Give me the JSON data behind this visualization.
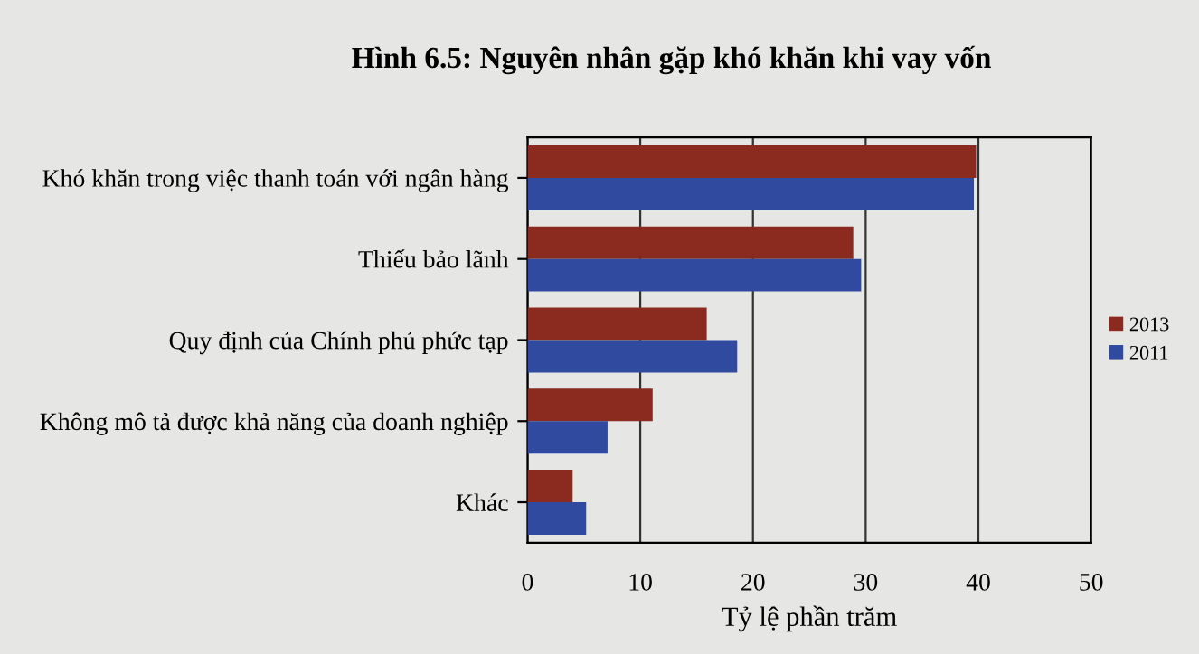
{
  "chart_data": {
    "type": "bar",
    "orientation": "horizontal",
    "title": "Hình 6.5: Nguyên nhân gặp khó khăn khi vay vốn",
    "xlabel": "Tỷ lệ phần trăm",
    "categories": [
      "Khó khăn trong việc thanh toán với ngân hàng",
      "Thiếu bảo lãnh",
      "Quy định của Chính phủ phức tạp",
      "Không mô tả được khả năng của doanh nghiệp",
      "Khác"
    ],
    "series": [
      {
        "name": "2013",
        "color": "#8b2a1e",
        "values": [
          39.8,
          28.9,
          15.9,
          11.1,
          4.0
        ]
      },
      {
        "name": "2011",
        "color": "#2f4a9e",
        "values": [
          39.6,
          29.6,
          18.6,
          7.1,
          5.2
        ]
      }
    ],
    "xlim": [
      0,
      50
    ],
    "xticks": [
      0,
      10,
      20,
      30,
      40,
      50
    ],
    "grid": "x",
    "legend": "right"
  }
}
